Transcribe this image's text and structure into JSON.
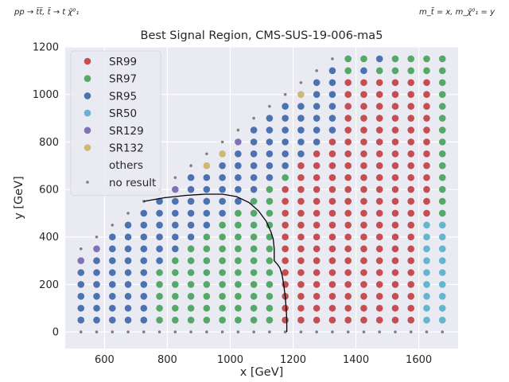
{
  "corner_notes": {
    "left": "pp → t̃t̃, t̃ → t χ̃⁰₁",
    "right": "m_t̃ = x, m_χ̃⁰₁ = y"
  },
  "chart_data": {
    "type": "scatter",
    "title": "Best Signal Region, CMS-SUS-19-006-ma5",
    "xlabel": "x [GeV]",
    "ylabel": "y [GeV]",
    "xlim": [
      475,
      1725
    ],
    "ylim": [
      -70,
      1200
    ],
    "xticks": [
      600,
      800,
      1000,
      1200,
      1400,
      1600
    ],
    "yticks": [
      0,
      200,
      400,
      600,
      800,
      1000,
      1200
    ],
    "grid": true,
    "legend_position": "upper-left",
    "legend": [
      {
        "label": "SR99",
        "color": "#c44e52",
        "marker": "dot"
      },
      {
        "label": "SR97",
        "color": "#55a868",
        "marker": "dot"
      },
      {
        "label": "SR95",
        "color": "#4c72b0",
        "marker": "dot"
      },
      {
        "label": "SR50",
        "color": "#64b5cd",
        "marker": "dot"
      },
      {
        "label": "SR129",
        "color": "#8172b3",
        "marker": "dot"
      },
      {
        "label": "SR132",
        "color": "#ccb974",
        "marker": "dot"
      },
      {
        "label": "others",
        "color": "",
        "marker": "none"
      },
      {
        "label": "no result",
        "color": "#808080",
        "marker": "small-dot"
      }
    ],
    "grid_points": {
      "x_start": 525,
      "x_step": 50,
      "x_count": 24,
      "y_start": 0,
      "y_step": 50,
      "diagonal_offset": 175
    },
    "no_result_points": "y = 0 row and the diagonal edge y = x - 175",
    "region_rules": [
      {
        "region": "SR99",
        "note": "x > ~1180 (below ~1050 GeV in y), x up to ~1580"
      },
      {
        "region": "SR97",
        "note": "central band; upper right corner above y=1100"
      },
      {
        "region": "SR95",
        "note": "low x region and upper diagonal band"
      },
      {
        "region": "SR50",
        "note": "x >= 1625, y <= 450"
      },
      {
        "region": "SR129",
        "note": "isolated points near diagonal"
      },
      {
        "region": "SR132",
        "note": "isolated points near diagonal"
      }
    ],
    "special_points": [
      {
        "x": 525,
        "y": 300,
        "region": "SR129"
      },
      {
        "x": 575,
        "y": 350,
        "region": "SR129"
      },
      {
        "x": 825,
        "y": 600,
        "region": "SR129"
      },
      {
        "x": 1025,
        "y": 800,
        "region": "SR129"
      },
      {
        "x": 1475,
        "y": 1150,
        "region": "SR95"
      },
      {
        "x": 1425,
        "y": 1100,
        "region": "SR95"
      },
      {
        "x": 925,
        "y": 700,
        "region": "SR132"
      },
      {
        "x": 975,
        "y": 750,
        "region": "SR132"
      },
      {
        "x": 1225,
        "y": 1000,
        "region": "SR132"
      }
    ],
    "contour": {
      "color": "#000000",
      "points": [
        [
          725,
          550
        ],
        [
          790,
          565
        ],
        [
          860,
          575
        ],
        [
          920,
          580
        ],
        [
          975,
          580
        ],
        [
          1020,
          570
        ],
        [
          1060,
          545
        ],
        [
          1090,
          510
        ],
        [
          1115,
          465
        ],
        [
          1130,
          420
        ],
        [
          1137,
          390
        ],
        [
          1140,
          350
        ],
        [
          1140,
          300
        ],
        [
          1150,
          285
        ],
        [
          1158,
          270
        ],
        [
          1165,
          240
        ],
        [
          1170,
          200
        ],
        [
          1175,
          150
        ],
        [
          1178,
          100
        ],
        [
          1180,
          50
        ],
        [
          1180,
          0
        ]
      ]
    }
  }
}
